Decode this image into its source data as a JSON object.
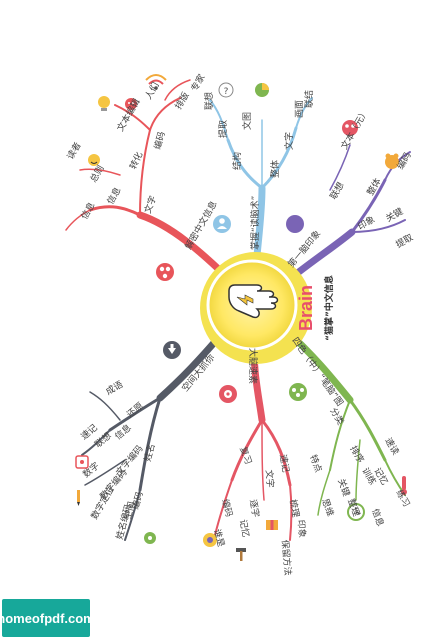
{
  "center": {
    "logo_text": "Brain",
    "subtitle": "“猫掌”中文信息"
  },
  "branches": [
    {
      "id": "b1",
      "color": "#e8555a",
      "label": "解密中文信息"
    },
    {
      "id": "b2",
      "color": "#8fc5e6",
      "label": "掌握“读脑术”"
    },
    {
      "id": "b3",
      "color": "#7a64b5",
      "label": "第一脑印象"
    },
    {
      "id": "b4",
      "color": "#7fb650",
      "label": "四色（中）“笔脑”图"
    },
    {
      "id": "b5",
      "color": "#e45664",
      "label": "大脑速素"
    },
    {
      "id": "b6",
      "color": "#555a66",
      "label": "空间大抓你"
    }
  ],
  "words": {
    "b1": [
      "文字",
      "信息",
      "编码",
      "转化",
      "文本编辑",
      "总则",
      "信息",
      "排版",
      "人们",
      "专家",
      "读者"
    ],
    "b2": [
      "结构",
      "提取",
      "联想",
      "文字",
      "画面",
      "文图",
      "整体",
      "联结"
    ],
    "b3": [
      "联想",
      "整体",
      "编码",
      "印象",
      "关键",
      "文本（元）",
      "提取"
    ],
    "b4": [
      "分类",
      "排序",
      "记忆",
      "关键",
      "思维",
      "练习",
      "训练",
      "整理",
      "特点",
      "速读",
      "信息"
    ],
    "b5": [
      "复习",
      "编码",
      "谁是",
      "速记",
      "梳理",
      "文字",
      "记忆",
      "保留方法",
      "逐字",
      "印象"
    ],
    "b6": [
      "还原",
      "联想",
      "数字",
      "姓名",
      "编码",
      "信息",
      "数字编码",
      "空间",
      "成语",
      "文字编码",
      "数字定位",
      "姓名编码",
      "速记"
    ]
  },
  "watermark": "homeofpdf.com"
}
